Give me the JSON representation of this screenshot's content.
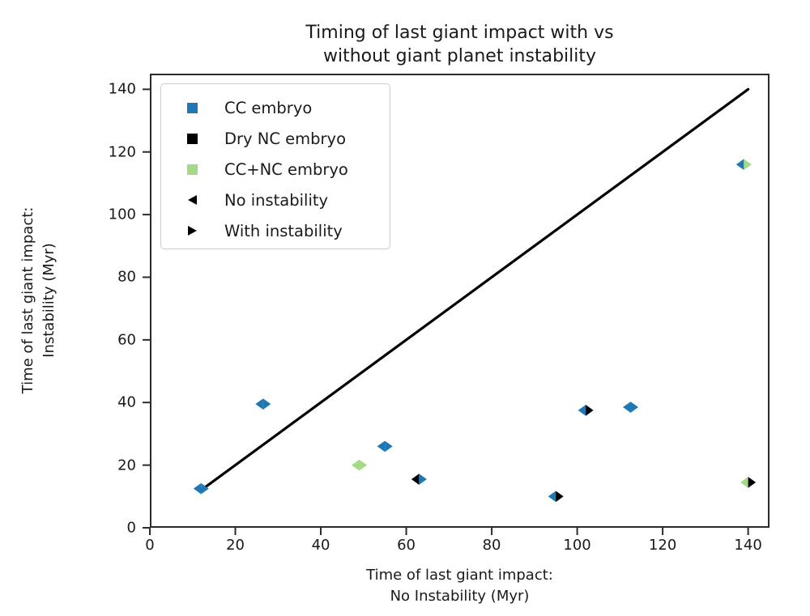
{
  "figure": {
    "title_line1": "Timing of last giant impact with vs",
    "title_line2": "without giant planet instability"
  },
  "x_axis": {
    "label_line1": "Time of last giant impact:",
    "label_line2": "No Instability (Myr)",
    "ticks": [
      0,
      20,
      40,
      60,
      80,
      100,
      120,
      140
    ]
  },
  "y_axis": {
    "label_line1": "Time of last giant impact:",
    "label_line2": "Instability (Myr)",
    "ticks": [
      0,
      20,
      40,
      60,
      80,
      100,
      120,
      140
    ]
  },
  "legend": {
    "items": [
      {
        "label": "CC embryo",
        "marker": "square",
        "color_key": "cc"
      },
      {
        "label": "Dry NC embryo",
        "marker": "square",
        "color_key": "dry_nc"
      },
      {
        "label": "CC+NC embryo",
        "marker": "square",
        "color_key": "cc_nc"
      },
      {
        "label": "No instability",
        "marker": "triangle_left",
        "color_key": "black"
      },
      {
        "label": "With instability",
        "marker": "triangle_right",
        "color_key": "black"
      }
    ]
  },
  "colors": {
    "cc": "#1f77b4",
    "dry_nc": "#000000",
    "cc_nc": "#a4da86",
    "black": "#000000",
    "line": "#000000",
    "spine": "#2b2b2b",
    "text": "#1a1a1a"
  },
  "chart_data": {
    "type": "scatter",
    "title": "Timing of last giant impact with vs without giant planet instability",
    "xlabel": "Time of last giant impact: No Instability (Myr)",
    "ylabel": "Time of last giant impact: Instability (Myr)",
    "xlim": [
      0,
      145
    ],
    "ylim": [
      0,
      145
    ],
    "xticks": [
      0,
      20,
      40,
      60,
      80,
      100,
      120,
      140
    ],
    "yticks": [
      0,
      20,
      40,
      60,
      80,
      100,
      120,
      140
    ],
    "grid": false,
    "legend_position": "upper left",
    "identity_line": {
      "x": [
        12,
        140
      ],
      "y": [
        12,
        140
      ],
      "color_key": "line"
    },
    "marker_note": "each point is a left-pointing triangle (embryo type without instability) joined to a right-pointing triangle (embryo type with instability), forming a split diamond",
    "points": [
      {
        "x": 12,
        "y": 12.5,
        "left": "cc",
        "right": "cc"
      },
      {
        "x": 26.5,
        "y": 39.5,
        "left": "cc",
        "right": "cc"
      },
      {
        "x": 49,
        "y": 20,
        "left": "cc_nc",
        "right": "cc_nc"
      },
      {
        "x": 55,
        "y": 26,
        "left": "cc",
        "right": "cc"
      },
      {
        "x": 63,
        "y": 15.5,
        "left": "dry_nc",
        "right": "cc"
      },
      {
        "x": 95,
        "y": 10,
        "left": "cc",
        "right": "dry_nc"
      },
      {
        "x": 102,
        "y": 37.5,
        "left": "cc",
        "right": "dry_nc"
      },
      {
        "x": 112.5,
        "y": 38.5,
        "left": "cc",
        "right": "cc"
      },
      {
        "x": 139,
        "y": 116,
        "left": "cc",
        "right": "cc_nc"
      },
      {
        "x": 140,
        "y": 14.5,
        "left": "cc_nc",
        "right": "dry_nc"
      }
    ]
  }
}
